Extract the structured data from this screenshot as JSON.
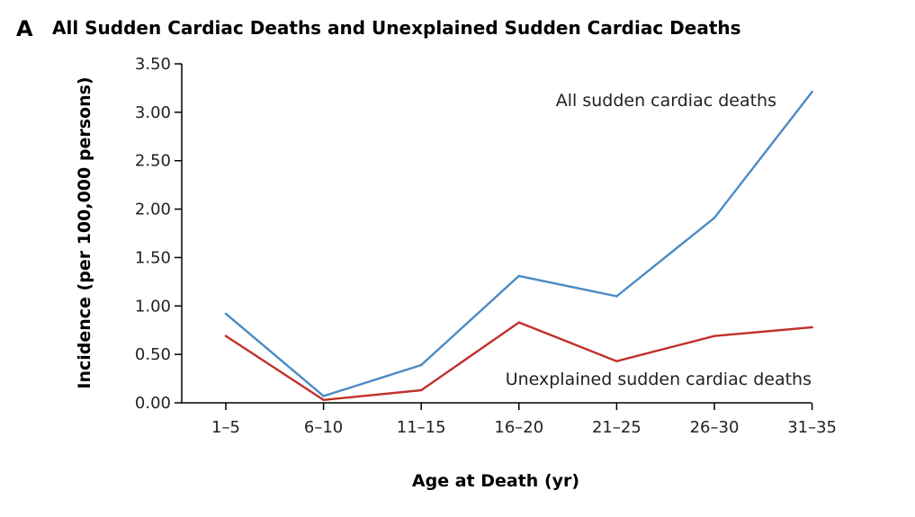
{
  "chart_data": {
    "type": "line",
    "panel_letter": "A",
    "title": "All Sudden Cardiac Deaths and Unexplained Sudden Cardiac Deaths",
    "xlabel": "Age at Death (yr)",
    "ylabel": "Incidence (per 100,000 persons)",
    "categories": [
      "1–5",
      "6–10",
      "11–15",
      "16–20",
      "21–25",
      "26–30",
      "31–35"
    ],
    "ylim": [
      0,
      3.5
    ],
    "yticks": [
      "0.00",
      "0.50",
      "1.00",
      "1.50",
      "2.00",
      "2.50",
      "3.00",
      "3.50"
    ],
    "grid": false,
    "series": [
      {
        "name": "All sudden cardiac deaths",
        "color": "#4a8ac4",
        "values": [
          0.92,
          0.07,
          0.39,
          1.31,
          1.1,
          1.91,
          3.21
        ]
      },
      {
        "name": "Unexplained sudden cardiac deaths",
        "color": "#c0312b",
        "values": [
          0.69,
          0.03,
          0.13,
          0.83,
          0.43,
          0.69,
          0.78
        ]
      }
    ]
  }
}
